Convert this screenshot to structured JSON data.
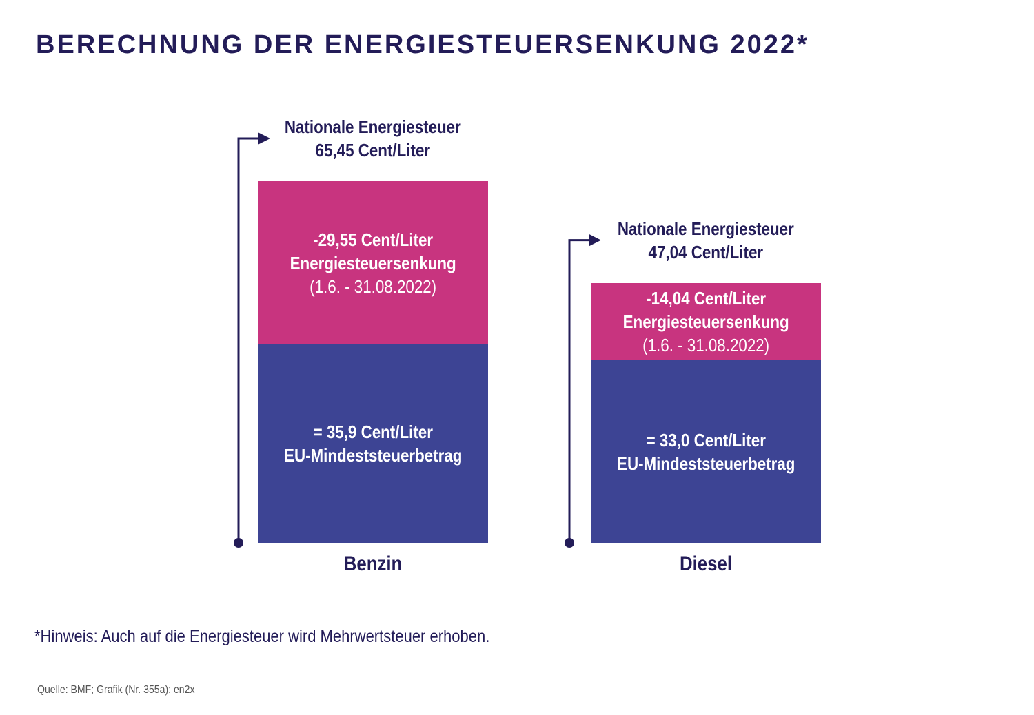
{
  "title": "BERECHNUNG DER ENERGIESTEUERSENKUNG 2022*",
  "note": "*Hinweis: Auch auf die Energiesteuer wird Mehrwertsteuer erhoben.",
  "source": "Quelle: BMF; Grafik (Nr. 355a): en2x",
  "colors": {
    "text": "#231c58",
    "reduction": "#c8347f",
    "eu_minimum": "#3d4494"
  },
  "chart_data": {
    "type": "bar",
    "stacked": true,
    "unit": "Cent/Liter",
    "categories": [
      "Benzin",
      "Diesel"
    ],
    "series": [
      {
        "key": "eu_minimum",
        "values": [
          35.9,
          33.0
        ]
      },
      {
        "key": "reduction",
        "values": [
          29.55,
          14.04
        ]
      }
    ],
    "totals": [
      65.45,
      47.04
    ],
    "bars": [
      {
        "category": "Benzin",
        "total_label": [
          "Nationale Energiesteuer",
          "65,45 Cent/Liter"
        ],
        "reduction_label": [
          "-29,55 Cent/Liter",
          "Energiesteuersenkung",
          "(1.6. - 31.08.2022)"
        ],
        "eu_label": [
          "= 35,9 Cent/Liter",
          "EU-Mindeststeuerbetrag"
        ]
      },
      {
        "category": "Diesel",
        "total_label": [
          "Nationale Energiesteuer",
          "47,04 Cent/Liter"
        ],
        "reduction_label": [
          "-14,04 Cent/Liter",
          "Energiesteuersenkung",
          "(1.6. - 31.08.2022)"
        ],
        "eu_label": [
          "= 33,0 Cent/Liter",
          "EU-Mindeststeuerbetrag"
        ]
      }
    ],
    "ylim": [
      0,
      65.45
    ],
    "grid": false
  }
}
